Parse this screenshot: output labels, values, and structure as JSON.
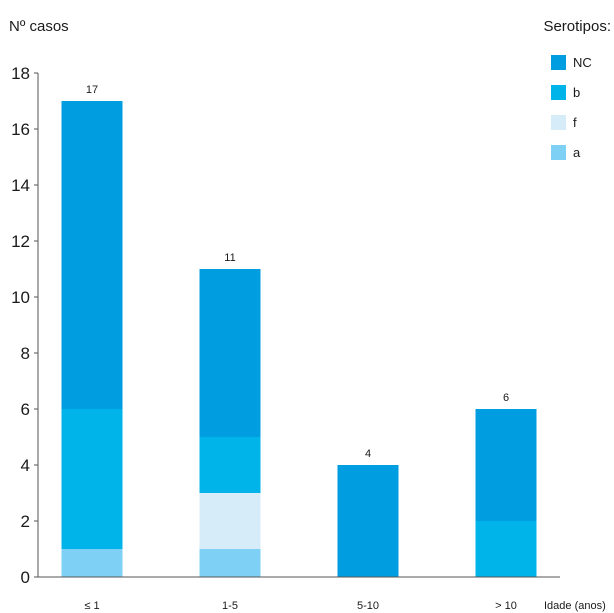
{
  "chart_data": {
    "type": "bar",
    "stacked": true,
    "title": "",
    "ylabel": "Nº casos",
    "xlabel": "Idade (anos)",
    "categories": [
      "≤ 1",
      "1-5",
      "5-10",
      "> 10"
    ],
    "ylim": [
      0,
      18
    ],
    "yticks": [
      0,
      2,
      4,
      6,
      8,
      10,
      12,
      14,
      16,
      18
    ],
    "grid": false,
    "legend": {
      "title": "Serotipos:",
      "placement": "top-right",
      "order": [
        "NC",
        "b",
        "f",
        "a"
      ]
    },
    "series": [
      {
        "name": "a",
        "color": "#7fd0f5",
        "values": [
          1,
          1,
          0,
          0
        ]
      },
      {
        "name": "f",
        "color": "#d6ecf9",
        "values": [
          0,
          2,
          0,
          0
        ]
      },
      {
        "name": "b",
        "color": "#00b4e9",
        "values": [
          5,
          2,
          0,
          2
        ]
      },
      {
        "name": "NC",
        "color": "#009ee0",
        "values": [
          11,
          6,
          4,
          4
        ]
      }
    ],
    "totals": [
      17,
      11,
      4,
      6
    ]
  }
}
